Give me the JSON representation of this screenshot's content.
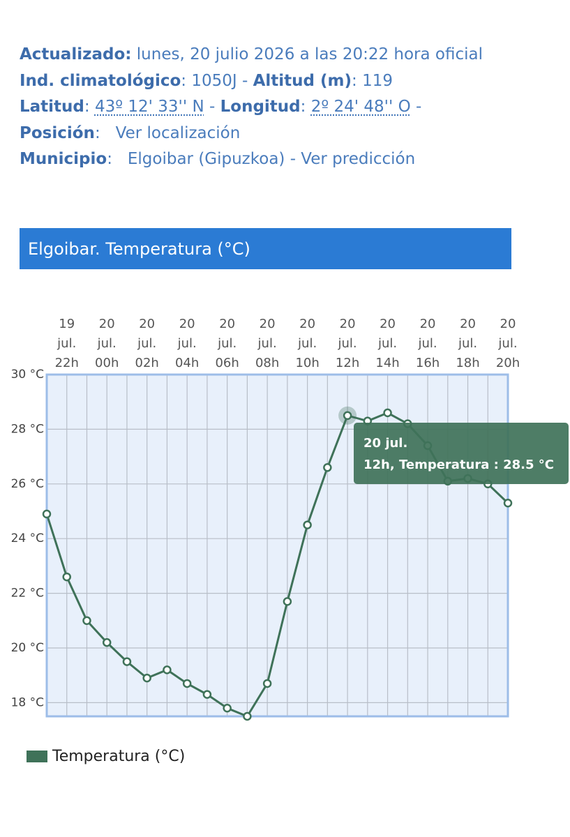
{
  "header": {
    "rows": [
      [
        {
          "text": "Actualizado:",
          "kind": "label"
        },
        {
          "text": " lunes, 20 julio 2026 a las 20:22 hora oficial",
          "kind": "value"
        }
      ],
      [
        {
          "text": "Ind. climatológico",
          "kind": "label"
        },
        {
          "text": ": 1050J - ",
          "kind": "value"
        },
        {
          "text": "Altitud (m)",
          "kind": "label"
        },
        {
          "text": ": 119",
          "kind": "value"
        }
      ],
      [
        {
          "text": "Latitud",
          "kind": "label"
        },
        {
          "text": ": ",
          "kind": "value"
        },
        {
          "text": "43º 12' 33'' N",
          "kind": "link"
        },
        {
          "text": " - ",
          "kind": "value"
        },
        {
          "text": "Longitud",
          "kind": "label"
        },
        {
          "text": ": ",
          "kind": "value"
        },
        {
          "text": "2º 24' 48'' O",
          "kind": "link"
        },
        {
          "text": " -",
          "kind": "value"
        }
      ],
      [
        {
          "text": "Posición",
          "kind": "label"
        },
        {
          "text": ":   Ver localización",
          "kind": "value"
        }
      ],
      [
        {
          "text": "Municipio",
          "kind": "label"
        },
        {
          "text": ":   Elgoibar (Gipuzkoa) - Ver predicción",
          "kind": "value"
        }
      ]
    ]
  },
  "chart_data": {
    "type": "line",
    "title": "Elgoibar. Temperatura (°C)",
    "categories": [
      null,
      [
        "19",
        "jul.",
        "22h"
      ],
      null,
      [
        "20",
        "jul.",
        "00h"
      ],
      null,
      [
        "20",
        "jul.",
        "02h"
      ],
      null,
      [
        "20",
        "jul.",
        "04h"
      ],
      null,
      [
        "20",
        "jul.",
        "06h"
      ],
      null,
      [
        "20",
        "jul.",
        "08h"
      ],
      null,
      [
        "20",
        "jul.",
        "10h"
      ],
      null,
      [
        "20",
        "jul.",
        "12h"
      ],
      null,
      [
        "20",
        "jul.",
        "14h"
      ],
      null,
      [
        "20",
        "jul.",
        "16h"
      ],
      null,
      [
        "20",
        "jul.",
        "18h"
      ],
      null,
      [
        "20",
        "jul.",
        "20h"
      ]
    ],
    "series": [
      {
        "name": "Temperatura (°C)",
        "color": "#3f7259",
        "values": [
          24.9,
          22.6,
          21.0,
          20.2,
          19.5,
          18.9,
          19.2,
          18.7,
          18.3,
          17.8,
          17.5,
          18.7,
          21.7,
          24.5,
          26.6,
          28.5,
          28.3,
          28.6,
          28.2,
          27.4,
          26.1,
          26.2,
          26.0,
          25.3
        ]
      }
    ],
    "ylim": [
      17.5,
      30
    ],
    "yticks": [
      {
        "value": 18,
        "label": "18 °C"
      },
      {
        "value": 20,
        "label": "20 °C"
      },
      {
        "value": 22,
        "label": "22 °C"
      },
      {
        "value": 24,
        "label": "24 °C"
      },
      {
        "value": 26,
        "label": "26 °C"
      },
      {
        "value": 28,
        "label": "28 °C"
      },
      {
        "value": 30,
        "label": "30 °C"
      }
    ],
    "grid": true,
    "tooltip": {
      "index": 15,
      "lines": [
        "20 jul.",
        "12h, Temperatura : 28.5 °C"
      ]
    }
  }
}
